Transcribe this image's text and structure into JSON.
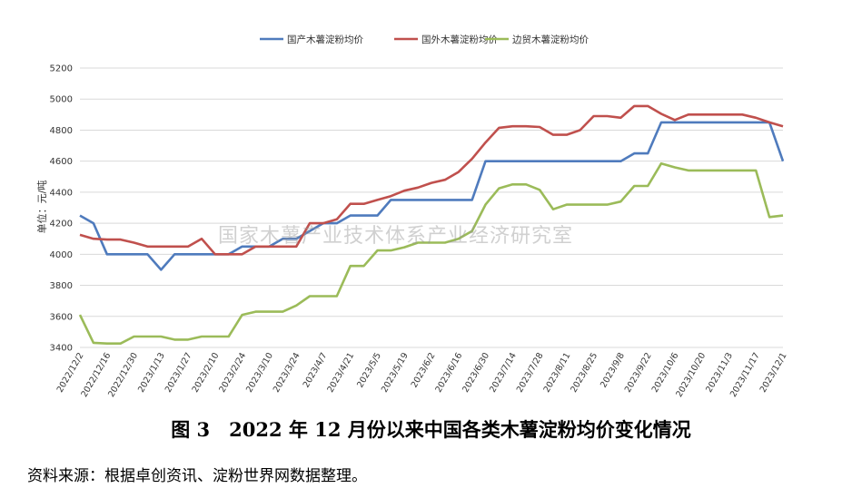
{
  "chart_data": {
    "type": "line",
    "ylabel": "单位：元/吨",
    "ylim": [
      3400,
      5200
    ],
    "yticks": [
      3400,
      3600,
      3800,
      4000,
      4200,
      4400,
      4600,
      4800,
      5000,
      5200
    ],
    "grid": true,
    "legend_position": "top",
    "x_tick_labels": [
      "2022/12/2",
      "2022/12/16",
      "2022/12/30",
      "2023/1/13",
      "2023/1/27",
      "2023/2/10",
      "2023/2/24",
      "2023/3/10",
      "2023/3/24",
      "2023/4/7",
      "2023/4/21",
      "2023/5/5",
      "2023/5/19",
      "2023/6/2",
      "2023/6/16",
      "2023/6/30",
      "2023/7/14",
      "2023/7/28",
      "2023/8/11",
      "2023/8/25",
      "2023/9/8",
      "2023/9/22",
      "2023/10/6",
      "2023/10/20",
      "2023/11/3",
      "2023/11/17",
      "2023/12/1"
    ],
    "series": [
      {
        "name": "国产木薯淀粉均价",
        "color": "#4f7bbd",
        "values": [
          4250,
          4200,
          4000,
          4000,
          4000,
          4000,
          3900,
          4000,
          4000,
          4000,
          4000,
          4000,
          4050,
          4050,
          4050,
          4100,
          4100,
          4150,
          4200,
          4200,
          4250,
          4250,
          4250,
          4350,
          4350,
          4350,
          4350,
          4350,
          4350,
          4350,
          4600,
          4600,
          4600,
          4600,
          4600,
          4600,
          4600,
          4600,
          4600,
          4600,
          4600,
          4650,
          4650,
          4850,
          4850,
          4850,
          4850,
          4850,
          4850,
          4850,
          4850,
          4850,
          4600
        ]
      },
      {
        "name": "国外木薯淀粉均价",
        "color": "#c0504d",
        "values": [
          4125,
          4100,
          4095,
          4095,
          4075,
          4050,
          4050,
          4050,
          4050,
          4100,
          4000,
          4000,
          4000,
          4050,
          4050,
          4050,
          4050,
          4200,
          4200,
          4225,
          4325,
          4325,
          4350,
          4375,
          4410,
          4430,
          4460,
          4480,
          4530,
          4615,
          4720,
          4815,
          4825,
          4825,
          4820,
          4770,
          4770,
          4800,
          4890,
          4890,
          4880,
          4955,
          4955,
          4905,
          4865,
          4900,
          4900,
          4900,
          4900,
          4900,
          4880,
          4850,
          4825
        ]
      },
      {
        "name": "边贸木薯淀粉均价",
        "color": "#9bbb59",
        "values": [
          3610,
          3430,
          3425,
          3425,
          3470,
          3470,
          3470,
          3450,
          3450,
          3470,
          3470,
          3470,
          3610,
          3630,
          3630,
          3630,
          3670,
          3730,
          3730,
          3730,
          3925,
          3925,
          4025,
          4025,
          4045,
          4075,
          4075,
          4075,
          4100,
          4150,
          4320,
          4425,
          4450,
          4450,
          4415,
          4290,
          4320,
          4320,
          4320,
          4320,
          4340,
          4440,
          4440,
          4585,
          4560,
          4540,
          4540,
          4540,
          4540,
          4540,
          4540,
          4240,
          4250
        ]
      }
    ]
  },
  "watermark": "国家木薯产业技术体系产业经济研究室",
  "caption": "图 3　2022 年 12 月份以来中国各类木薯淀粉均价变化情况",
  "source": "资料来源：根据卓创资讯、淀粉世界网数据整理。"
}
